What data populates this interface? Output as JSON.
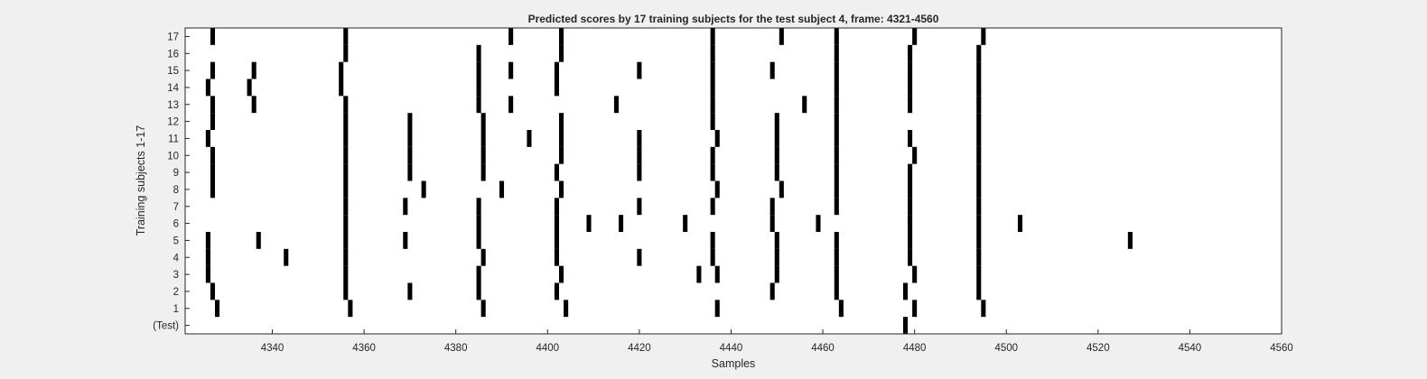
{
  "chart_data": {
    "type": "heatmap",
    "title": "Predicted scores by 17 training subjects for the test subject 4, frame: 4321-4560",
    "xlabel": "Samples",
    "ylabel": "Training subjects 1-17",
    "xlim": [
      4321,
      4560
    ],
    "xticks": [
      4340,
      4360,
      4380,
      4400,
      4420,
      4440,
      4460,
      4480,
      4500,
      4520,
      4540,
      4560
    ],
    "yticklabels": [
      "(Test)",
      "1",
      "2",
      "3",
      "4",
      "5",
      "6",
      "7",
      "8",
      "9",
      "10",
      "11",
      "12",
      "13",
      "14",
      "15",
      "16",
      "17"
    ],
    "colors": {
      "mark": "#000000",
      "background": "#ffffff",
      "figure": "#f0f0f0",
      "axes": "#262626"
    },
    "grid": false,
    "rows": [
      {
        "label": "(Test)",
        "events": [
          4478
        ]
      },
      {
        "label": "1",
        "events": [
          4328,
          4357,
          4386,
          4404,
          4437,
          4464,
          4480,
          4495
        ]
      },
      {
        "label": "2",
        "events": [
          4327,
          4356,
          4385,
          4402,
          4370,
          4449,
          4463,
          4478,
          4494
        ]
      },
      {
        "label": "3",
        "events": [
          4326,
          4356,
          4385,
          4403,
          4433,
          4437,
          4450,
          4463,
          4480,
          4494
        ]
      },
      {
        "label": "4",
        "events": [
          4326,
          4343,
          4356,
          4386,
          4402,
          4420,
          4436,
          4450,
          4463,
          4479,
          4494
        ]
      },
      {
        "label": "5",
        "events": [
          4326,
          4337,
          4356,
          4369,
          4385,
          4402,
          4436,
          4450,
          4463,
          4479,
          4494,
          4527
        ]
      },
      {
        "label": "6",
        "events": [
          4356,
          4385,
          4402,
          4409,
          4416,
          4430,
          4449,
          4459,
          4479,
          4494,
          4503
        ]
      },
      {
        "label": "7",
        "events": [
          4356,
          4369,
          4385,
          4402,
          4420,
          4436,
          4449,
          4463,
          4479,
          4494
        ]
      },
      {
        "label": "8",
        "events": [
          4327,
          4356,
          4373,
          4390,
          4403,
          4437,
          4451,
          4463,
          4479,
          4494
        ]
      },
      {
        "label": "9",
        "events": [
          4327,
          4356,
          4370,
          4386,
          4402,
          4420,
          4436,
          4450,
          4463,
          4479,
          4494
        ]
      },
      {
        "label": "10",
        "events": [
          4327,
          4356,
          4370,
          4386,
          4403,
          4420,
          4436,
          4450,
          4463,
          4480,
          4494
        ]
      },
      {
        "label": "11",
        "events": [
          4326,
          4356,
          4370,
          4386,
          4396,
          4403,
          4420,
          4437,
          4450,
          4463,
          4479,
          4494
        ]
      },
      {
        "label": "12",
        "events": [
          4327,
          4356,
          4370,
          4386,
          4403,
          4436,
          4450,
          4463,
          4494
        ]
      },
      {
        "label": "13",
        "events": [
          4327,
          4336,
          4356,
          4385,
          4392,
          4415,
          4436,
          4456,
          4463,
          4479,
          4494
        ]
      },
      {
        "label": "14",
        "events": [
          4326,
          4335,
          4355,
          4385,
          4402,
          4436,
          4463,
          4479,
          4494
        ]
      },
      {
        "label": "15",
        "events": [
          4327,
          4336,
          4355,
          4385,
          4392,
          4402,
          4420,
          4436,
          4449,
          4463,
          4479,
          4494
        ]
      },
      {
        "label": "16",
        "events": [
          4356,
          4385,
          4403,
          4436,
          4463,
          4479,
          4494
        ]
      },
      {
        "label": "17",
        "events": [
          4327,
          4356,
          4392,
          4403,
          4436,
          4451,
          4463,
          4480,
          4495
        ]
      }
    ]
  }
}
